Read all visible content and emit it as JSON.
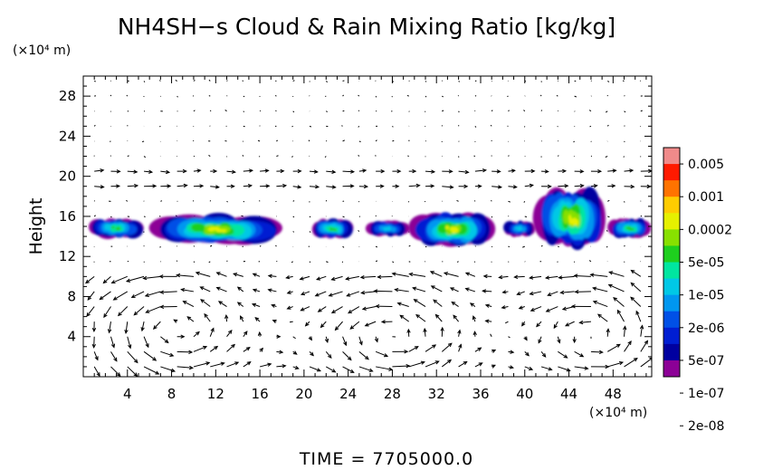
{
  "chart_data": {
    "type": "heatmap",
    "title": "NH4SH−s Cloud & Rain Mixing Ratio [kg/kg]",
    "ylabel": "Height",
    "y_unit": "(×10⁴ m)",
    "x_unit": "(×10⁴ m)",
    "xlim": [
      0,
      51.5
    ],
    "ylim": [
      0,
      30
    ],
    "x_ticks": [
      4,
      8,
      12,
      16,
      20,
      24,
      28,
      32,
      36,
      40,
      44,
      48
    ],
    "y_ticks": [
      4,
      8,
      12,
      16,
      20,
      24,
      28
    ],
    "colorbar": {
      "labels": [
        "0.005",
        "0.001",
        "0.0002",
        "5e-05",
        "1e-05",
        "2e-06",
        "5e-07",
        "1e-07",
        "2e-08"
      ],
      "colors": [
        "#f08a8a",
        "#ff1a00",
        "#ff7300",
        "#ffcc00",
        "#e6f000",
        "#88e000",
        "#1ecf1e",
        "#00e6a0",
        "#00c8e6",
        "#0097f0",
        "#0050e6",
        "#001ed2",
        "#0000a0",
        "#8c0096"
      ]
    },
    "clouds": [
      {
        "x": [
          0.5,
          5.5
        ],
        "y": [
          13.8,
          15.8
        ],
        "peak": "5e-05"
      },
      {
        "x": [
          6.0,
          18.0
        ],
        "y": [
          13.2,
          16.2
        ],
        "peak": "0.0002"
      },
      {
        "x": [
          20.5,
          24.5
        ],
        "y": [
          13.8,
          15.8
        ],
        "peak": "5e-05"
      },
      {
        "x": [
          25.5,
          29.5
        ],
        "y": [
          14.0,
          15.6
        ],
        "peak": "1e-05"
      },
      {
        "x": [
          29.5,
          37.5
        ],
        "y": [
          13.0,
          16.4
        ],
        "peak": "0.0002"
      },
      {
        "x": [
          38.0,
          41.0
        ],
        "y": [
          14.0,
          15.6
        ],
        "peak": "1e-05"
      },
      {
        "x": [
          41.0,
          47.5
        ],
        "y": [
          12.8,
          18.8
        ],
        "peak": "0.0002"
      },
      {
        "x": [
          47.5,
          51.5
        ],
        "y": [
          13.8,
          15.8
        ],
        "peak": "5e-05"
      }
    ],
    "wind_vectors": "arrow field; circulation cells near x=8, x=28, x=46 below 10 km"
  },
  "timestamp": "TIME  =  7705000.0"
}
